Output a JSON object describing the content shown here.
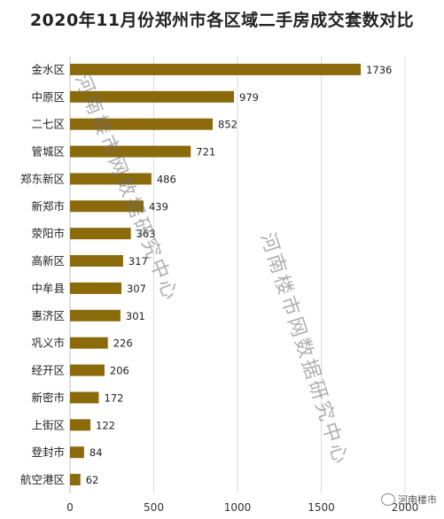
{
  "chart_data": {
    "type": "bar",
    "orientation": "horizontal",
    "title": "2020年11月份郑州市各区域二手房成交套数对比",
    "categories": [
      "金水区",
      "中原区",
      "二七区",
      "管城区",
      "郑东新区",
      "新郑市",
      "荥阳市",
      "高新区",
      "中牟县",
      "惠济区",
      "巩义市",
      "经开区",
      "新密市",
      "上街区",
      "登封市",
      "航空港区"
    ],
    "values": [
      1736,
      979,
      852,
      721,
      486,
      439,
      363,
      317,
      307,
      301,
      226,
      206,
      172,
      122,
      84,
      62
    ],
    "xlim": [
      0,
      2000
    ],
    "xticks": [
      0,
      500,
      1000,
      1500,
      2000
    ],
    "grid": true,
    "bar_color": "#8b6a0b",
    "data_labels": true
  },
  "watermark": {
    "text": "河南楼市网数据研究中心"
  },
  "badge": {
    "text": "河南楼市"
  }
}
